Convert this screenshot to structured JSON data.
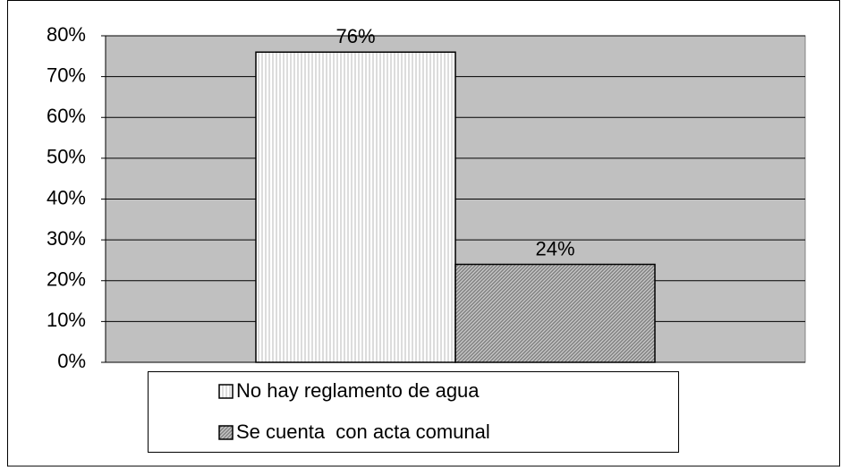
{
  "chart_data": {
    "type": "bar",
    "categories": [
      null
    ],
    "series": [
      {
        "name": "No hay reglamento de agua",
        "color": "#d0d0d0",
        "pattern": "vertical",
        "values": [
          76
        ],
        "value_labels": [
          "76%"
        ]
      },
      {
        "name": "Se cuenta  con acta comunal",
        "color": "#808080",
        "pattern": "diagonal",
        "values": [
          24
        ],
        "value_labels": [
          "24%"
        ]
      }
    ],
    "ylim": [
      0,
      80
    ],
    "yticks": [
      {
        "value": 0,
        "label": "0%"
      },
      {
        "value": 10,
        "label": "10%"
      },
      {
        "value": 20,
        "label": "20%"
      },
      {
        "value": 30,
        "label": "30%"
      },
      {
        "value": 40,
        "label": "40%"
      },
      {
        "value": 50,
        "label": "50%"
      },
      {
        "value": 60,
        "label": "60%"
      },
      {
        "value": 70,
        "label": "70%"
      },
      {
        "value": 80,
        "label": "80%"
      }
    ],
    "grid": true,
    "legend": "bottom"
  }
}
